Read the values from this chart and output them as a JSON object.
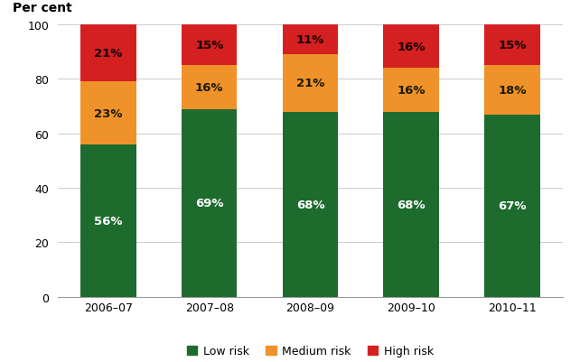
{
  "categories": [
    "2006–07",
    "2007–08",
    "2008–09",
    "2009–10",
    "2010–11"
  ],
  "low_risk": [
    56,
    69,
    68,
    68,
    67
  ],
  "medium_risk": [
    23,
    16,
    21,
    16,
    18
  ],
  "high_risk": [
    21,
    15,
    11,
    16,
    15
  ],
  "low_risk_color": "#1e6b2e",
  "medium_risk_color": "#f0922a",
  "high_risk_color": "#d42020",
  "low_risk_label": "Low risk",
  "medium_risk_label": "Medium risk",
  "high_risk_label": "High risk",
  "ylabel": "Per cent",
  "ylim": [
    0,
    100
  ],
  "yticks": [
    0,
    20,
    40,
    60,
    80,
    100
  ],
  "background_color": "#ffffff",
  "grid_color": "#cccccc",
  "bar_width": 0.55,
  "label_fontsize": 9.5,
  "tick_fontsize": 9,
  "legend_fontsize": 9,
  "ylabel_fontsize": 10,
  "low_text_color": "#ffffff",
  "medium_text_color": "#1a1a00",
  "high_text_color": "#1a0000"
}
